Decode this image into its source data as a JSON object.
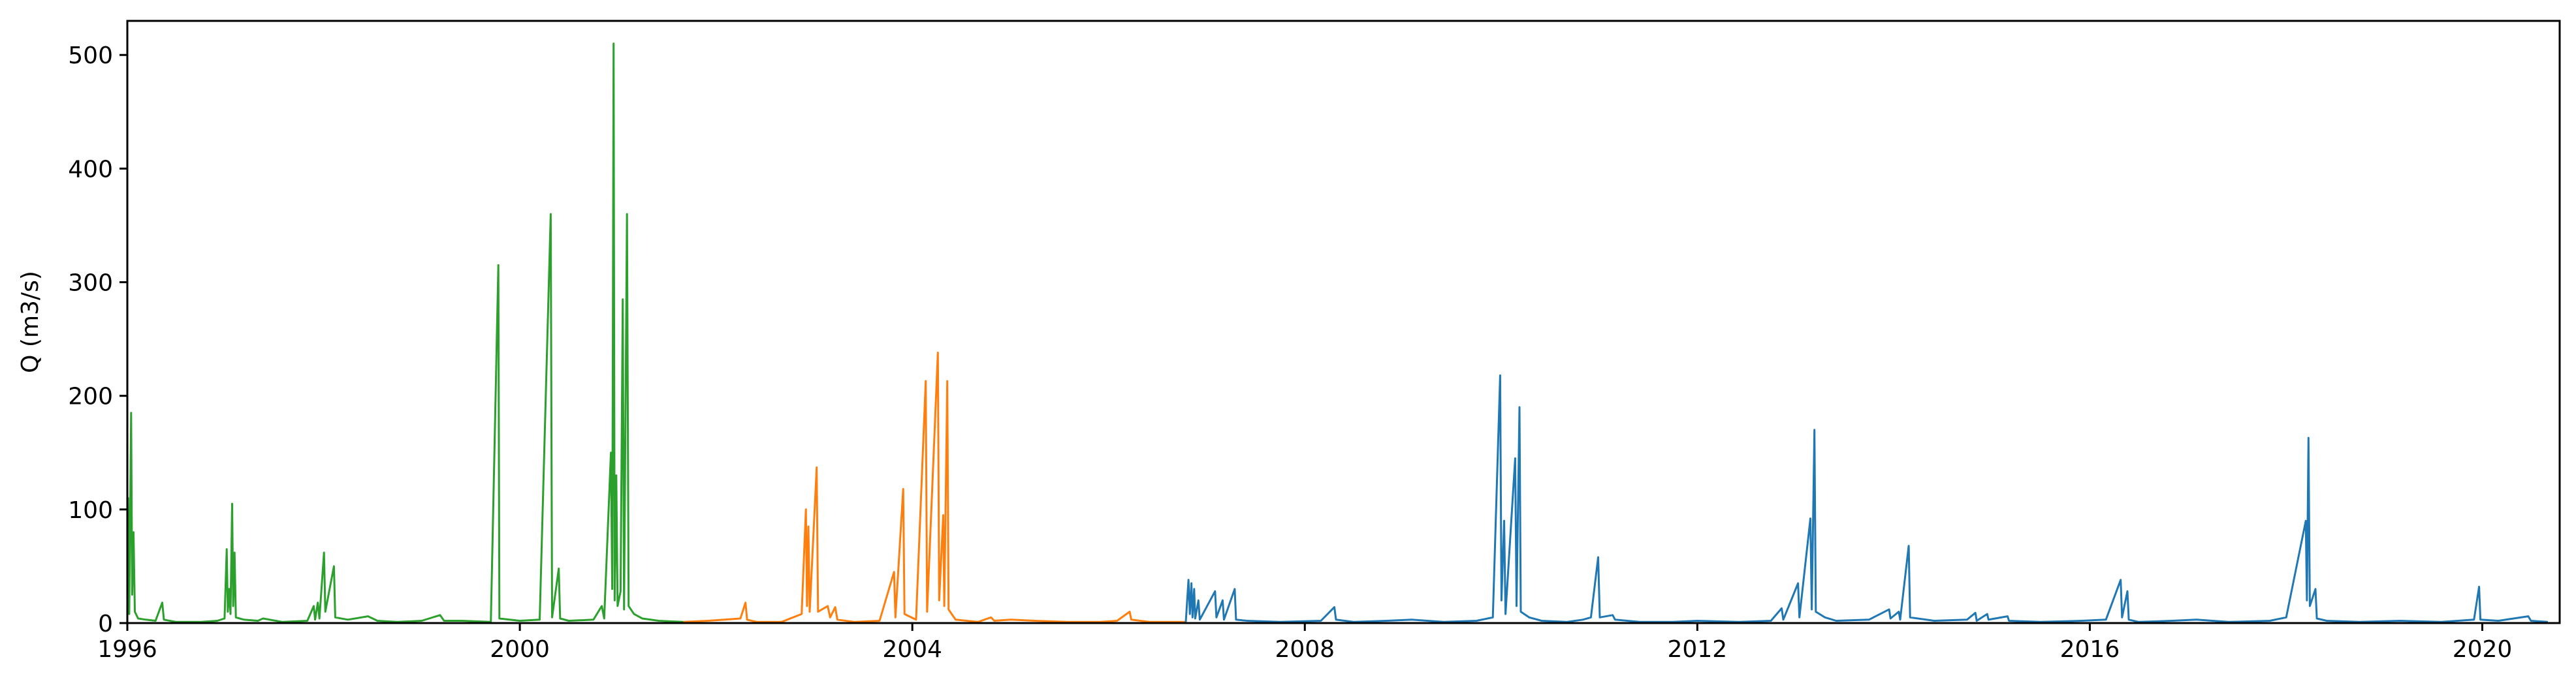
{
  "chart_data": {
    "type": "line",
    "title": "",
    "xlabel": "",
    "ylabel": "Q (m3/s)",
    "xlim": [
      "1996-01-01",
      "2020-10-15"
    ],
    "ylim": [
      0,
      530
    ],
    "xticks": [
      "1996",
      "2000",
      "2004",
      "2008",
      "2012",
      "2016",
      "2020"
    ],
    "yticks": [
      0,
      100,
      200,
      300,
      400,
      500
    ],
    "grid": false,
    "legend": "none",
    "series": [
      {
        "color": "#2ca02c",
        "points": [
          [
            "1996-01-01",
            5
          ],
          [
            "1996-01-04",
            110
          ],
          [
            "1996-01-08",
            8
          ],
          [
            "1996-01-15",
            185
          ],
          [
            "1996-01-19",
            25
          ],
          [
            "1996-01-24",
            80
          ],
          [
            "1996-01-29",
            10
          ],
          [
            "1996-02-10",
            4
          ],
          [
            "1996-03-10",
            3
          ],
          [
            "1996-04-15",
            2
          ],
          [
            "1996-05-10",
            18
          ],
          [
            "1996-05-16",
            3
          ],
          [
            "1996-07-01",
            1
          ],
          [
            "1996-10-01",
            1
          ],
          [
            "1996-12-01",
            2
          ],
          [
            "1996-12-28",
            4
          ],
          [
            "1997-01-05",
            65
          ],
          [
            "1997-01-09",
            10
          ],
          [
            "1997-01-14",
            30
          ],
          [
            "1997-01-19",
            8
          ],
          [
            "1997-01-25",
            105
          ],
          [
            "1997-01-29",
            15
          ],
          [
            "1997-02-03",
            62
          ],
          [
            "1997-02-08",
            5
          ],
          [
            "1997-03-10",
            3
          ],
          [
            "1997-05-01",
            2
          ],
          [
            "1997-05-20",
            4
          ],
          [
            "1997-08-01",
            1
          ],
          [
            "1997-11-01",
            2
          ],
          [
            "1997-11-25",
            15
          ],
          [
            "1997-11-30",
            3
          ],
          [
            "1997-12-10",
            18
          ],
          [
            "1997-12-16",
            4
          ],
          [
            "1998-01-02",
            62
          ],
          [
            "1998-01-07",
            10
          ],
          [
            "1998-02-08",
            50
          ],
          [
            "1998-02-13",
            5
          ],
          [
            "1998-04-01",
            3
          ],
          [
            "1998-06-15",
            6
          ],
          [
            "1998-07-20",
            2
          ],
          [
            "1998-10-01",
            1
          ],
          [
            "1999-01-01",
            2
          ],
          [
            "1999-03-10",
            7
          ],
          [
            "1999-03-25",
            2
          ],
          [
            "1999-06-01",
            2
          ],
          [
            "1999-09-15",
            1
          ],
          [
            "1999-10-13",
            315
          ],
          [
            "1999-10-17",
            4
          ],
          [
            "2000-01-01",
            2
          ],
          [
            "2000-03-15",
            3
          ],
          [
            "2000-04-25",
            360
          ],
          [
            "2000-04-30",
            5
          ],
          [
            "2000-05-25",
            48
          ],
          [
            "2000-05-30",
            4
          ],
          [
            "2000-07-01",
            2
          ],
          [
            "2000-10-01",
            3
          ],
          [
            "2000-11-01",
            15
          ],
          [
            "2000-11-10",
            4
          ],
          [
            "2000-12-05",
            150
          ],
          [
            "2000-12-10",
            30
          ],
          [
            "2000-12-15",
            510
          ],
          [
            "2000-12-19",
            20
          ],
          [
            "2000-12-25",
            130
          ],
          [
            "2000-12-30",
            15
          ],
          [
            "2001-01-10",
            28
          ],
          [
            "2001-01-18",
            285
          ],
          [
            "2001-01-23",
            12
          ],
          [
            "2001-02-03",
            360
          ],
          [
            "2001-02-09",
            15
          ],
          [
            "2001-03-01",
            8
          ],
          [
            "2001-04-01",
            4
          ],
          [
            "2001-06-01",
            2
          ],
          [
            "2001-09-01",
            1
          ]
        ]
      },
      {
        "color": "#ff7f0e",
        "points": [
          [
            "2001-09-01",
            1
          ],
          [
            "2001-12-01",
            2
          ],
          [
            "2002-02-01",
            3
          ],
          [
            "2002-04-01",
            4
          ],
          [
            "2002-04-20",
            18
          ],
          [
            "2002-04-26",
            3
          ],
          [
            "2002-06-01",
            1
          ],
          [
            "2002-09-01",
            1
          ],
          [
            "2002-11-15",
            8
          ],
          [
            "2002-12-01",
            100
          ],
          [
            "2002-12-05",
            15
          ],
          [
            "2002-12-10",
            85
          ],
          [
            "2002-12-15",
            10
          ],
          [
            "2003-01-10",
            137
          ],
          [
            "2003-01-15",
            10
          ],
          [
            "2003-02-20",
            15
          ],
          [
            "2003-03-01",
            5
          ],
          [
            "2003-03-20",
            14
          ],
          [
            "2003-03-28",
            3
          ],
          [
            "2003-06-01",
            1
          ],
          [
            "2003-09-01",
            2
          ],
          [
            "2003-10-25",
            45
          ],
          [
            "2003-10-30",
            5
          ],
          [
            "2003-11-28",
            118
          ],
          [
            "2003-12-03",
            8
          ],
          [
            "2004-01-15",
            3
          ],
          [
            "2004-02-20",
            213
          ],
          [
            "2004-02-25",
            10
          ],
          [
            "2004-04-05",
            238
          ],
          [
            "2004-04-10",
            20
          ],
          [
            "2004-04-25",
            95
          ],
          [
            "2004-04-29",
            15
          ],
          [
            "2004-05-10",
            213
          ],
          [
            "2004-05-15",
            12
          ],
          [
            "2004-06-10",
            3
          ],
          [
            "2004-09-01",
            1
          ],
          [
            "2004-10-20",
            5
          ],
          [
            "2004-11-01",
            2
          ],
          [
            "2005-01-01",
            3
          ],
          [
            "2005-04-01",
            2
          ],
          [
            "2005-08-01",
            1
          ],
          [
            "2005-12-01",
            1
          ],
          [
            "2006-02-01",
            2
          ],
          [
            "2006-03-20",
            10
          ],
          [
            "2006-03-26",
            3
          ],
          [
            "2006-06-01",
            1
          ],
          [
            "2006-09-01",
            1
          ],
          [
            "2006-10-15",
            1
          ]
        ]
      },
      {
        "color": "#1f77b4",
        "points": [
          [
            "2006-10-15",
            1
          ],
          [
            "2006-10-25",
            38
          ],
          [
            "2006-10-30",
            8
          ],
          [
            "2006-11-05",
            35
          ],
          [
            "2006-11-09",
            5
          ],
          [
            "2006-11-15",
            30
          ],
          [
            "2006-11-19",
            4
          ],
          [
            "2006-12-01",
            20
          ],
          [
            "2006-12-06",
            3
          ],
          [
            "2007-02-01",
            28
          ],
          [
            "2007-02-06",
            5
          ],
          [
            "2007-03-01",
            20
          ],
          [
            "2007-03-06",
            3
          ],
          [
            "2007-04-15",
            30
          ],
          [
            "2007-04-20",
            3
          ],
          [
            "2007-06-01",
            2
          ],
          [
            "2007-10-01",
            1
          ],
          [
            "2008-03-01",
            2
          ],
          [
            "2008-04-20",
            14
          ],
          [
            "2008-04-26",
            3
          ],
          [
            "2008-07-01",
            1
          ],
          [
            "2008-11-01",
            2
          ],
          [
            "2009-02-01",
            3
          ],
          [
            "2009-06-01",
            1
          ],
          [
            "2009-10-01",
            2
          ],
          [
            "2009-12-01",
            5
          ],
          [
            "2009-12-28",
            218
          ],
          [
            "2010-01-02",
            20
          ],
          [
            "2010-01-12",
            90
          ],
          [
            "2010-01-17",
            8
          ],
          [
            "2010-02-22",
            145
          ],
          [
            "2010-02-27",
            15
          ],
          [
            "2010-03-10",
            190
          ],
          [
            "2010-03-15",
            10
          ],
          [
            "2010-04-15",
            5
          ],
          [
            "2010-06-01",
            2
          ],
          [
            "2010-09-01",
            1
          ],
          [
            "2010-11-01",
            3
          ],
          [
            "2010-12-01",
            5
          ],
          [
            "2010-12-28",
            58
          ],
          [
            "2011-01-03",
            5
          ],
          [
            "2011-02-20",
            7
          ],
          [
            "2011-03-01",
            3
          ],
          [
            "2011-06-01",
            1
          ],
          [
            "2011-10-01",
            1
          ],
          [
            "2012-01-01",
            2
          ],
          [
            "2012-06-01",
            1
          ],
          [
            "2012-10-01",
            2
          ],
          [
            "2012-11-10",
            13
          ],
          [
            "2012-11-16",
            3
          ],
          [
            "2013-01-10",
            35
          ],
          [
            "2013-01-15",
            5
          ],
          [
            "2013-02-25",
            92
          ],
          [
            "2013-03-02",
            12
          ],
          [
            "2013-03-12",
            170
          ],
          [
            "2013-03-17",
            10
          ],
          [
            "2013-04-20",
            5
          ],
          [
            "2013-06-01",
            2
          ],
          [
            "2013-10-01",
            3
          ],
          [
            "2013-12-15",
            12
          ],
          [
            "2013-12-20",
            4
          ],
          [
            "2014-01-20",
            10
          ],
          [
            "2014-01-25",
            3
          ],
          [
            "2014-02-26",
            68
          ],
          [
            "2014-03-03",
            5
          ],
          [
            "2014-06-01",
            2
          ],
          [
            "2014-10-01",
            3
          ],
          [
            "2014-11-01",
            9
          ],
          [
            "2014-11-06",
            2
          ],
          [
            "2014-12-15",
            8
          ],
          [
            "2014-12-20",
            3
          ],
          [
            "2015-03-01",
            6
          ],
          [
            "2015-03-06",
            2
          ],
          [
            "2015-07-01",
            1
          ],
          [
            "2015-12-01",
            2
          ],
          [
            "2016-03-01",
            3
          ],
          [
            "2016-04-25",
            38
          ],
          [
            "2016-04-30",
            5
          ],
          [
            "2016-05-20",
            28
          ],
          [
            "2016-05-25",
            3
          ],
          [
            "2016-07-01",
            1
          ],
          [
            "2016-11-01",
            2
          ],
          [
            "2017-02-01",
            3
          ],
          [
            "2017-06-01",
            1
          ],
          [
            "2017-11-01",
            2
          ],
          [
            "2018-01-01",
            5
          ],
          [
            "2018-03-15",
            90
          ],
          [
            "2018-03-19",
            20
          ],
          [
            "2018-03-25",
            163
          ],
          [
            "2018-03-30",
            15
          ],
          [
            "2018-04-20",
            30
          ],
          [
            "2018-04-25",
            4
          ],
          [
            "2018-06-01",
            2
          ],
          [
            "2018-10-01",
            1
          ],
          [
            "2019-03-01",
            2
          ],
          [
            "2019-08-01",
            1
          ],
          [
            "2019-12-01",
            3
          ],
          [
            "2019-12-20",
            32
          ],
          [
            "2019-12-25",
            3
          ],
          [
            "2020-03-01",
            2
          ],
          [
            "2020-06-20",
            6
          ],
          [
            "2020-06-30",
            2
          ],
          [
            "2020-09-01",
            1
          ]
        ]
      }
    ]
  }
}
